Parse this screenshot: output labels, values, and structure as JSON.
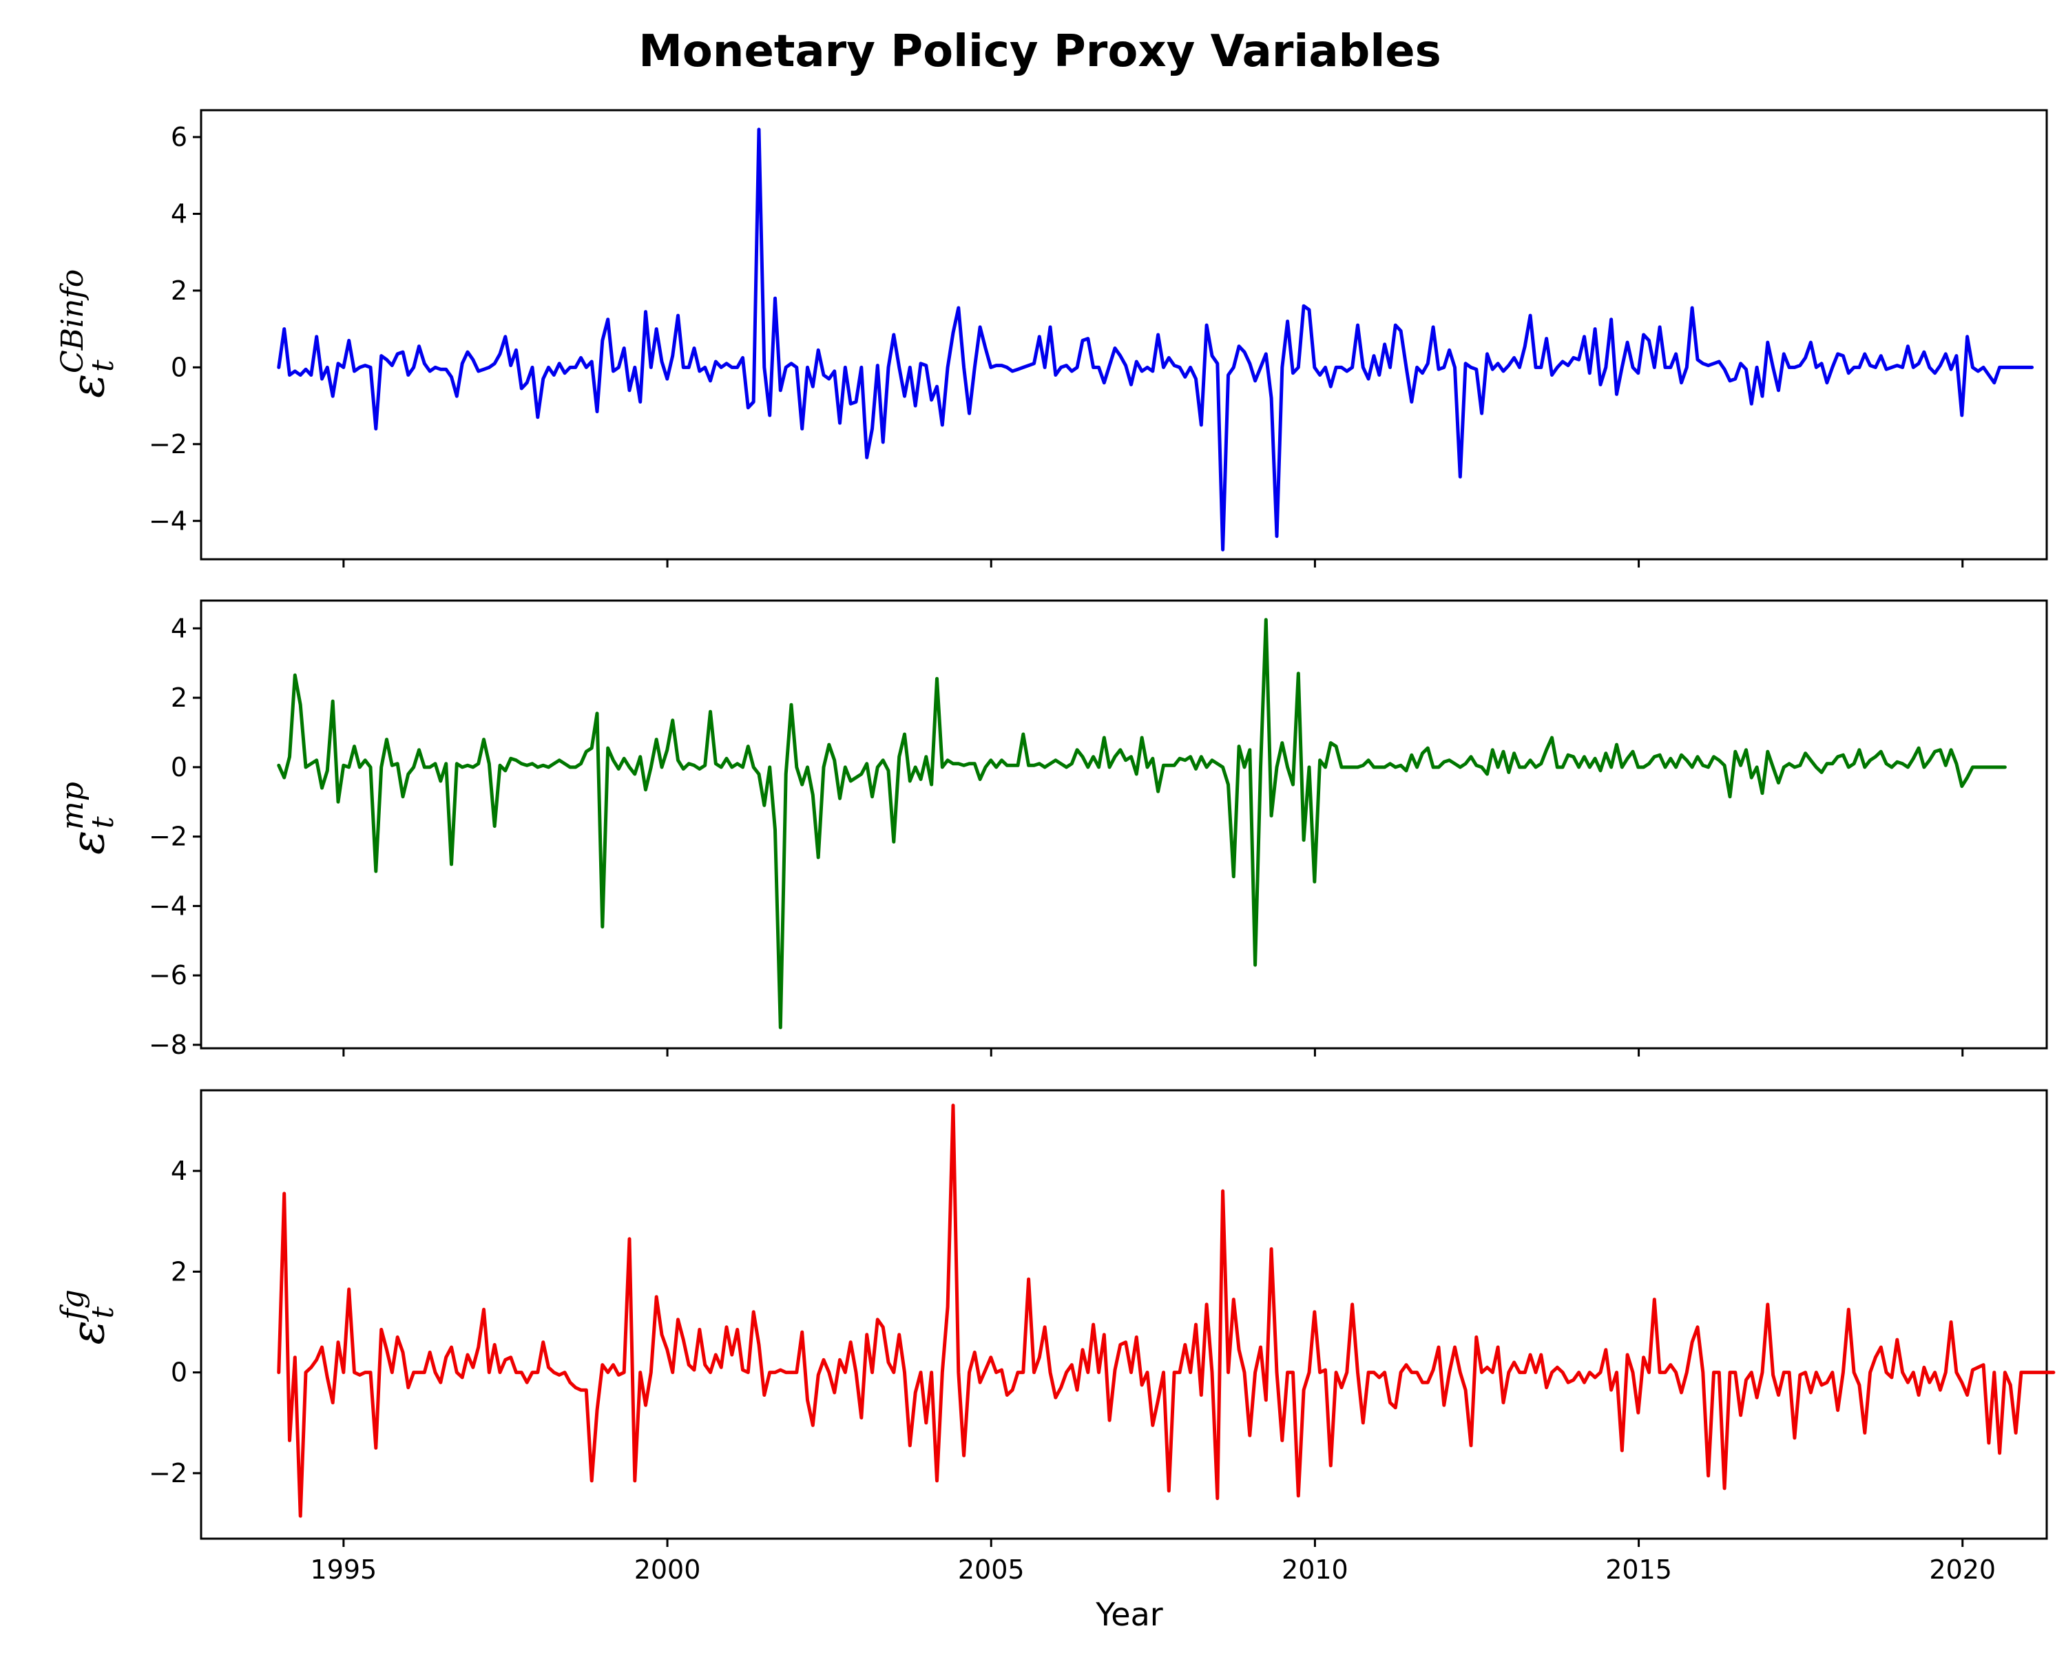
{
  "chart_data": {
    "type": "line",
    "title": "Monetary Policy Proxy Variables",
    "xlabel": "Year",
    "x_ticks": [
      1995,
      2000,
      2005,
      2010,
      2015,
      2020
    ],
    "x_range": [
      1992.8,
      2021.3
    ],
    "x_start": 1994.0,
    "x_step": 0.0833,
    "panels": [
      {
        "name": "cbinfo",
        "ylabel": "ε",
        "ylabel_sub": "t",
        "ylabel_sup": "CBinfo",
        "color": "#0000ee",
        "yticks": [
          -4,
          -2,
          0,
          2,
          4,
          6
        ],
        "ylim": [
          -5.0,
          6.7
        ],
        "values": [
          0.0,
          1.0,
          -0.2,
          -0.1,
          -0.2,
          -0.05,
          -0.2,
          0.8,
          -0.3,
          0.0,
          -0.75,
          0.1,
          0.0,
          0.7,
          -0.1,
          0.0,
          0.05,
          0.0,
          -1.6,
          0.3,
          0.2,
          0.05,
          0.35,
          0.4,
          -0.2,
          0.0,
          0.55,
          0.1,
          -0.1,
          0.0,
          -0.05,
          -0.05,
          -0.25,
          -0.75,
          0.1,
          0.4,
          0.2,
          -0.1,
          -0.05,
          0.0,
          0.1,
          0.35,
          0.8,
          0.05,
          0.45,
          -0.55,
          -0.4,
          0.0,
          -1.3,
          -0.3,
          0.0,
          -0.2,
          0.1,
          -0.15,
          0.0,
          0.0,
          0.25,
          0.0,
          0.15,
          -1.15,
          0.7,
          1.25,
          -0.1,
          0.0,
          0.5,
          -0.6,
          0.0,
          -0.9,
          1.45,
          0.0,
          1.0,
          0.15,
          -0.3,
          0.3,
          1.35,
          0.0,
          0.0,
          0.5,
          -0.1,
          0.0,
          -0.35,
          0.15,
          0.0,
          0.1,
          0.0,
          0.0,
          0.25,
          -1.05,
          -0.9,
          6.2,
          0.0,
          -1.25,
          1.8,
          -0.6,
          0.0,
          0.1,
          0.0,
          -1.6,
          0.0,
          -0.5,
          0.45,
          -0.2,
          -0.3,
          -0.1,
          -1.45,
          0.0,
          -0.95,
          -0.9,
          0.0,
          -2.35,
          -1.6,
          0.05,
          -1.95,
          0.0,
          0.85,
          0.0,
          -0.75,
          0.0,
          -1.0,
          0.1,
          0.05,
          -0.85,
          -0.5,
          -1.5,
          0.0,
          0.9,
          1.55,
          0.0,
          -1.2,
          0.0,
          1.05,
          0.5,
          0.0,
          0.05,
          0.05,
          0.0,
          -0.1,
          -0.05,
          0.0,
          0.05,
          0.1,
          0.8,
          0.0,
          1.05,
          -0.2,
          0.0,
          0.05,
          -0.1,
          0.0,
          0.7,
          0.75,
          0.0,
          0.0,
          -0.4,
          0.05,
          0.5,
          0.3,
          0.05,
          -0.45,
          0.15,
          -0.1,
          0.0,
          -0.1,
          0.85,
          0.0,
          0.25,
          0.05,
          0.0,
          -0.25,
          0.0,
          -0.3,
          -1.5,
          1.1,
          0.3,
          0.1,
          -4.75,
          -0.2,
          0.0,
          0.55,
          0.4,
          0.1,
          -0.35,
          0.0,
          0.35,
          -0.8,
          -4.4,
          0.0,
          1.2,
          -0.15,
          0.0,
          1.6,
          1.5,
          0.0,
          -0.2,
          0.0,
          -0.5,
          0.0,
          0.0,
          -0.1,
          0.0,
          1.1,
          0.0,
          -0.3,
          0.3,
          -0.2,
          0.6,
          0.0,
          1.1,
          0.95,
          0.0,
          -0.9,
          0.0,
          -0.15,
          0.1,
          1.05,
          -0.05,
          0.0,
          0.45,
          0.0,
          -2.85,
          0.1,
          0.0,
          -0.05,
          -1.2,
          0.35,
          -0.05,
          0.1,
          -0.1,
          0.05,
          0.25,
          0.0,
          0.55,
          1.35,
          0.0,
          0.0,
          0.75,
          -0.2,
          0.0,
          0.15,
          0.05,
          0.25,
          0.2,
          0.8,
          -0.15,
          1.0,
          -0.45,
          0.0,
          1.25,
          -0.7,
          0.0,
          0.65,
          0.0,
          -0.15,
          0.85,
          0.7,
          0.0,
          1.05,
          0.0,
          0.0,
          0.35,
          -0.4,
          0.0,
          1.55,
          0.2,
          0.1,
          0.05,
          0.1,
          0.15,
          -0.05,
          -0.35,
          -0.3,
          0.1,
          -0.05,
          -0.95,
          0.0,
          -0.75,
          0.65,
          0.0,
          -0.6,
          0.35,
          0.0,
          0.0,
          0.05,
          0.25,
          0.65,
          0.0,
          0.1,
          -0.4,
          0.0,
          0.35,
          0.3,
          -0.15,
          0.0,
          0.0,
          0.35,
          0.05,
          0.0,
          0.3,
          -0.05,
          0.0,
          0.05,
          0.0,
          0.55,
          0.0,
          0.1,
          0.4,
          0.0,
          -0.15,
          0.05,
          0.35,
          -0.05,
          0.3,
          -1.25,
          0.8,
          0.0,
          -0.1,
          0.0,
          -0.2,
          -0.4,
          0.0,
          0.0,
          0.0,
          0.0,
          0.0,
          0.0,
          0.0
        ]
      },
      {
        "name": "mp",
        "ylabel": "ε",
        "ylabel_sub": "t",
        "ylabel_sup": "mp",
        "color": "#007700",
        "yticks": [
          -8,
          -6,
          -4,
          -2,
          0,
          2,
          4
        ],
        "ylim": [
          -8.1,
          4.8
        ],
        "values": [
          0.05,
          -0.3,
          0.3,
          2.65,
          1.8,
          0.0,
          0.1,
          0.2,
          -0.6,
          -0.1,
          1.9,
          -1.0,
          0.05,
          0.0,
          0.6,
          0.0,
          0.2,
          0.0,
          -3.0,
          0.0,
          0.8,
          0.05,
          0.1,
          -0.85,
          -0.2,
          0.0,
          0.5,
          0.0,
          0.0,
          0.1,
          -0.4,
          0.1,
          -2.8,
          0.1,
          0.0,
          0.05,
          0.0,
          0.1,
          0.8,
          0.1,
          -1.7,
          0.05,
          -0.1,
          0.25,
          0.2,
          0.1,
          0.05,
          0.1,
          0.0,
          0.05,
          0.0,
          0.1,
          0.2,
          0.1,
          0.0,
          0.0,
          0.1,
          0.45,
          0.55,
          1.55,
          -4.6,
          0.55,
          0.2,
          -0.05,
          0.25,
          0.0,
          -0.2,
          0.3,
          -0.65,
          0.0,
          0.8,
          0.0,
          0.5,
          1.35,
          0.2,
          -0.05,
          0.1,
          0.05,
          -0.05,
          0.05,
          1.6,
          0.1,
          0.0,
          0.25,
          0.0,
          0.1,
          0.0,
          0.6,
          0.0,
          -0.2,
          -1.1,
          0.0,
          -1.8,
          -7.5,
          -0.2,
          1.8,
          0.0,
          -0.5,
          0.0,
          -0.8,
          -2.6,
          0.0,
          0.65,
          0.2,
          -0.9,
          0.0,
          -0.4,
          -0.3,
          -0.2,
          0.1,
          -0.85,
          0.0,
          0.2,
          -0.1,
          -2.15,
          0.3,
          0.95,
          -0.4,
          0.0,
          -0.35,
          0.3,
          -0.5,
          2.55,
          0.0,
          0.2,
          0.1,
          0.1,
          0.05,
          0.1,
          0.1,
          -0.35,
          0.0,
          0.2,
          0.0,
          0.2,
          0.05,
          0.05,
          0.05,
          0.95,
          0.05,
          0.05,
          0.1,
          0.0,
          0.1,
          0.2,
          0.1,
          0.0,
          0.1,
          0.5,
          0.3,
          0.0,
          0.3,
          0.0,
          0.85,
          0.0,
          0.3,
          0.5,
          0.2,
          0.3,
          -0.2,
          0.85,
          0.0,
          0.25,
          -0.7,
          0.05,
          0.05,
          0.05,
          0.25,
          0.2,
          0.3,
          -0.05,
          0.3,
          0.0,
          0.2,
          0.1,
          0.0,
          -0.5,
          -3.15,
          0.6,
          0.0,
          0.5,
          -5.7,
          0.0,
          4.25,
          -1.4,
          0.0,
          0.7,
          0.0,
          -0.5,
          2.7,
          -2.1,
          0.0,
          -3.3,
          0.2,
          0.0,
          0.7,
          0.6,
          0.0,
          0.0,
          0.0,
          0.0,
          0.05,
          0.2,
          0.0,
          0.0,
          0.0,
          0.1,
          0.0,
          0.05,
          -0.1,
          0.35,
          0.0,
          0.4,
          0.55,
          0.0,
          0.0,
          0.15,
          0.2,
          0.1,
          0.0,
          0.1,
          0.3,
          0.05,
          0.0,
          -0.2,
          0.5,
          0.0,
          0.45,
          -0.15,
          0.4,
          0.0,
          0.0,
          0.2,
          0.0,
          0.1,
          0.5,
          0.85,
          0.0,
          0.0,
          0.35,
          0.3,
          0.0,
          0.3,
          0.0,
          0.25,
          -0.1,
          0.4,
          0.0,
          0.65,
          0.0,
          0.25,
          0.45,
          0.0,
          0.0,
          0.1,
          0.3,
          0.35,
          0.0,
          0.25,
          0.0,
          0.35,
          0.2,
          0.0,
          0.3,
          0.05,
          0.0,
          0.3,
          0.2,
          0.05,
          -0.85,
          0.45,
          0.05,
          0.5,
          -0.3,
          0.0,
          -0.75,
          0.45,
          0.0,
          -0.45,
          0.0,
          0.1,
          0.0,
          0.05,
          0.4,
          0.2,
          0.0,
          -0.15,
          0.1,
          0.1,
          0.3,
          0.35,
          0.0,
          0.1,
          0.5,
          0.0,
          0.2,
          0.3,
          0.45,
          0.1,
          0.0,
          0.15,
          0.1,
          0.0,
          0.25,
          0.55,
          0.0,
          0.2,
          0.45,
          0.5,
          0.05,
          0.5,
          0.1,
          -0.55,
          -0.3,
          0.0,
          0.0,
          0.0,
          0.0,
          0.0,
          0.0,
          0.0
        ]
      },
      {
        "name": "fg",
        "ylabel": "ε",
        "ylabel_sub": "t",
        "ylabel_sup": "fg",
        "color": "#ee0000",
        "yticks": [
          -2,
          0,
          2,
          4
        ],
        "ylim": [
          -3.3,
          5.6
        ],
        "values": [
          0.0,
          3.55,
          -1.35,
          0.3,
          -2.85,
          0.0,
          0.1,
          0.25,
          0.5,
          -0.1,
          -0.6,
          0.6,
          0.0,
          1.65,
          0.0,
          -0.05,
          0.0,
          0.0,
          -1.5,
          0.85,
          0.45,
          0.0,
          0.7,
          0.4,
          -0.3,
          0.0,
          0.0,
          0.0,
          0.4,
          0.0,
          -0.2,
          0.3,
          0.5,
          0.0,
          -0.1,
          0.35,
          0.1,
          0.5,
          1.25,
          0.0,
          0.55,
          0.0,
          0.25,
          0.3,
          0.0,
          0.0,
          -0.2,
          0.0,
          0.0,
          0.6,
          0.1,
          0.0,
          -0.05,
          0.0,
          -0.2,
          -0.3,
          -0.35,
          -0.35,
          -2.15,
          -0.75,
          0.15,
          0.0,
          0.15,
          -0.05,
          0.0,
          2.65,
          -2.15,
          0.0,
          -0.65,
          0.0,
          1.5,
          0.75,
          0.45,
          0.0,
          1.05,
          0.65,
          0.15,
          0.05,
          0.85,
          0.15,
          0.0,
          0.35,
          0.1,
          0.9,
          0.35,
          0.85,
          0.05,
          0.0,
          1.2,
          0.55,
          -0.45,
          0.0,
          0.0,
          0.05,
          0.0,
          0.0,
          0.0,
          0.8,
          -0.55,
          -1.05,
          -0.05,
          0.25,
          0.0,
          -0.4,
          0.25,
          0.0,
          0.6,
          0.0,
          -0.9,
          0.75,
          0.0,
          1.05,
          0.9,
          0.2,
          0.0,
          0.75,
          0.0,
          -1.45,
          -0.4,
          0.0,
          -1.0,
          0.0,
          -2.15,
          0.0,
          1.3,
          5.3,
          0.0,
          -1.65,
          0.0,
          0.4,
          -0.2,
          0.05,
          0.3,
          0.0,
          0.05,
          -0.45,
          -0.35,
          0.0,
          0.0,
          1.85,
          0.0,
          0.3,
          0.9,
          0.0,
          -0.5,
          -0.3,
          0.0,
          0.15,
          -0.35,
          0.45,
          0.0,
          0.95,
          0.0,
          0.75,
          -0.95,
          0.05,
          0.55,
          0.6,
          0.0,
          0.7,
          -0.25,
          0.0,
          -1.05,
          -0.55,
          0.0,
          -2.35,
          0.0,
          0.0,
          0.55,
          0.0,
          0.95,
          -0.45,
          1.35,
          0.0,
          -2.5,
          3.6,
          0.0,
          1.45,
          0.45,
          0.0,
          -1.25,
          0.0,
          0.5,
          -0.55,
          2.45,
          0.0,
          -1.35,
          0.0,
          0.0,
          -2.45,
          -0.35,
          0.0,
          1.2,
          0.0,
          0.05,
          -1.85,
          0.0,
          -0.3,
          0.0,
          1.35,
          0.0,
          -1.0,
          0.0,
          0.0,
          -0.1,
          0.0,
          -0.6,
          -0.7,
          0.0,
          0.15,
          0.0,
          0.0,
          -0.2,
          -0.2,
          0.05,
          0.5,
          -0.65,
          0.0,
          0.5,
          0.0,
          -0.35,
          -1.45,
          0.7,
          0.0,
          0.1,
          0.0,
          0.5,
          -0.6,
          0.0,
          0.2,
          0.0,
          0.0,
          0.35,
          0.0,
          0.35,
          -0.3,
          0.0,
          0.1,
          0.0,
          -0.2,
          -0.15,
          0.0,
          -0.2,
          0.0,
          -0.1,
          0.0,
          0.45,
          -0.35,
          0.0,
          -1.55,
          0.35,
          0.0,
          -0.8,
          0.3,
          0.0,
          1.45,
          0.0,
          0.0,
          0.15,
          0.0,
          -0.4,
          0.0,
          0.6,
          0.9,
          0.0,
          -2.05,
          0.0,
          0.0,
          -2.3,
          0.0,
          0.0,
          -0.85,
          -0.15,
          0.0,
          -0.5,
          0.0,
          1.35,
          -0.05,
          -0.45,
          0.0,
          0.0,
          -1.3,
          -0.05,
          0.0,
          -0.4,
          0.0,
          -0.25,
          -0.2,
          0.0,
          -0.75,
          0.0,
          1.25,
          0.0,
          -0.25,
          -1.2,
          0.0,
          0.3,
          0.5,
          0.0,
          -0.1,
          0.65,
          0.0,
          -0.2,
          0.0,
          -0.45,
          0.1,
          -0.2,
          0.0,
          -0.35,
          0.0,
          1.0,
          0.0,
          -0.2,
          -0.45,
          0.05,
          0.1,
          0.15,
          -1.4,
          0.0,
          -1.6,
          0.0,
          -0.25,
          -1.2,
          0.0,
          0.0,
          0.0,
          0.0,
          0.0,
          0.0,
          0.0
        ]
      }
    ]
  }
}
